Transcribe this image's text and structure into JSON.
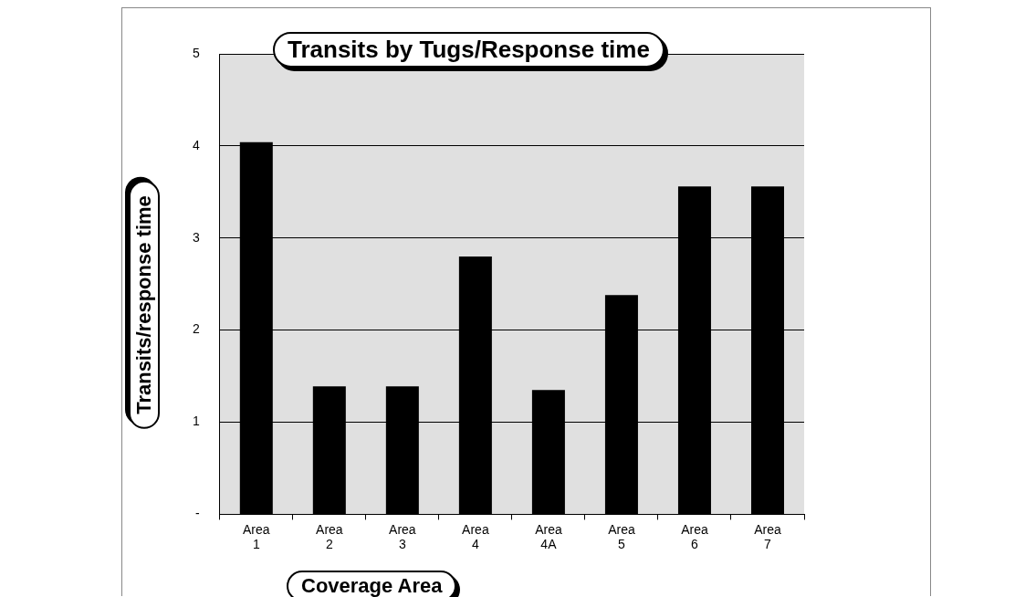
{
  "chart_data": {
    "type": "bar",
    "title": "Transits by Tugs/Response time",
    "xlabel": "Coverage Area",
    "ylabel": "Transits/response time",
    "categories": [
      "Area 1",
      "Area 2",
      "Area 3",
      "Area 4",
      "Area 4A",
      "Area 5",
      "Area 6",
      "Area 7"
    ],
    "values": [
      4.04,
      1.39,
      1.39,
      2.8,
      1.35,
      2.38,
      3.56,
      3.56
    ],
    "color": "#000000",
    "ylim": [
      0,
      5
    ],
    "yticks": [
      {
        "value": 0,
        "label": "-"
      },
      1,
      2,
      3,
      4,
      5
    ],
    "grid": "y"
  }
}
